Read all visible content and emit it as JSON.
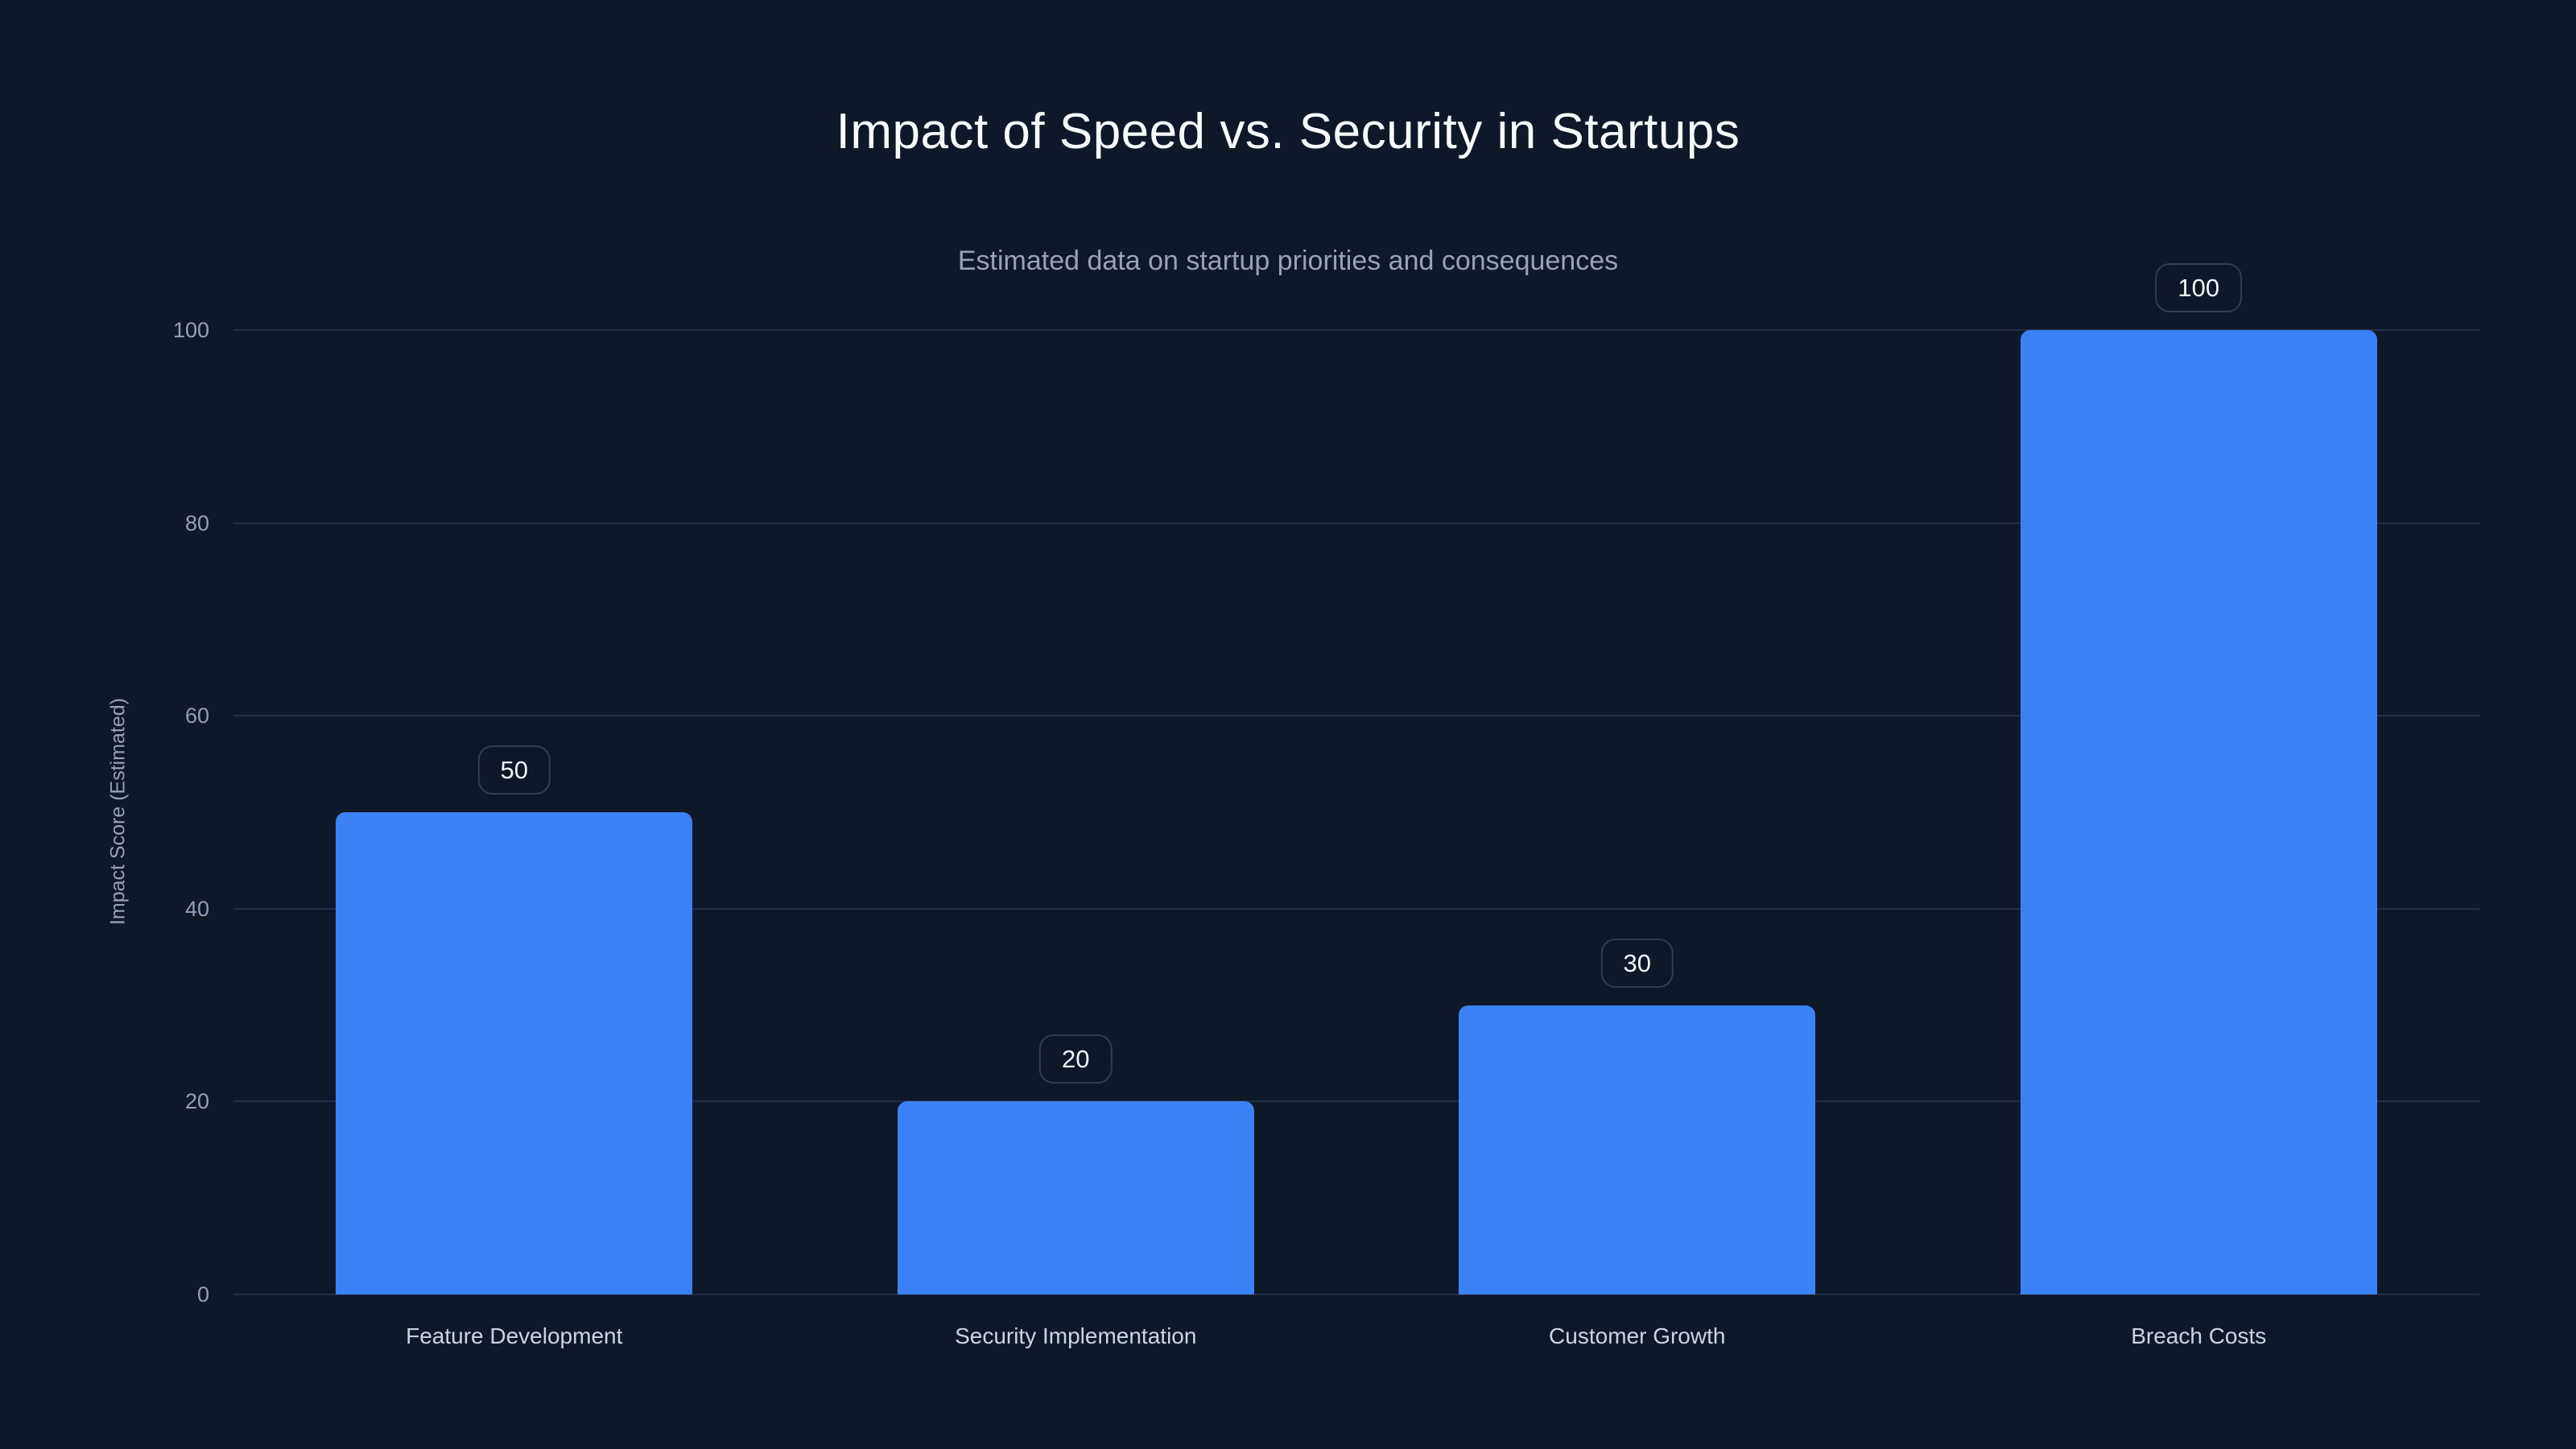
{
  "chart_data": {
    "type": "bar",
    "title": "Impact of Speed vs. Security in Startups",
    "subtitle": "Estimated data on startup priorities and consequences",
    "categories": [
      "Feature Development",
      "Security Implementation",
      "Customer Growth",
      "Breach Costs"
    ],
    "values": [
      50,
      20,
      30,
      100
    ],
    "value_labels": [
      "50",
      "20",
      "30",
      "100"
    ],
    "xlabel": "",
    "ylabel": "Impact Score (Estimated)",
    "ylim": [
      0,
      100
    ],
    "yticks": [
      0,
      20,
      40,
      60,
      80,
      100
    ],
    "grid": true,
    "legend_visible": false,
    "colors": {
      "bar": "#3b82f6",
      "background": "#0f1829",
      "gridline": "#232d45",
      "title_text": "#f8fafc",
      "subtitle_text": "#94a3b8",
      "tick_text": "#8fa1ba",
      "category_text": "#cbd5e1",
      "badge_border": "#323d55",
      "badge_text": "#f1f5f9"
    }
  }
}
